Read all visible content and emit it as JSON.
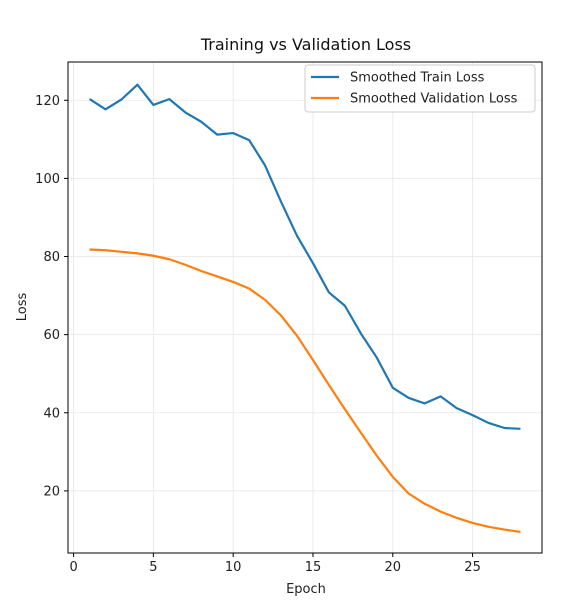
{
  "chart_data": {
    "type": "line",
    "title": "Training vs Validation Loss",
    "xlabel": "Epoch",
    "ylabel": "Loss",
    "xlim": [
      -0.35,
      29.35
    ],
    "ylim": [
      4.1,
      129.8
    ],
    "xticks": [
      0,
      5,
      10,
      15,
      20,
      25
    ],
    "yticks": [
      20,
      40,
      60,
      80,
      100,
      120
    ],
    "grid": true,
    "legend_position": "top-right",
    "x": [
      1,
      2,
      3,
      4,
      5,
      6,
      7,
      8,
      9,
      10,
      11,
      12,
      13,
      14,
      15,
      16,
      17,
      18,
      19,
      20,
      21,
      22,
      23,
      24,
      25,
      26,
      27,
      28
    ],
    "series": [
      {
        "name": "Smoothed Train Loss",
        "color": "#1f77b4",
        "values": [
          120.3,
          117.7,
          120.2,
          124.0,
          118.8,
          120.3,
          116.9,
          114.5,
          111.2,
          111.6,
          109.8,
          103.3,
          94.0,
          85.3,
          78.3,
          70.8,
          67.4,
          60.3,
          54.1,
          46.4,
          43.8,
          42.4,
          44.2,
          41.2,
          39.4,
          37.4,
          36.1,
          35.9
        ]
      },
      {
        "name": "Smoothed Validation Loss",
        "color": "#ff7f0e",
        "values": [
          81.8,
          81.6,
          81.2,
          80.8,
          80.2,
          79.3,
          77.9,
          76.3,
          74.9,
          73.5,
          71.8,
          68.9,
          64.9,
          59.7,
          53.5,
          47.1,
          40.9,
          34.9,
          29.0,
          23.6,
          19.3,
          16.7,
          14.7,
          13.1,
          11.8,
          10.8,
          10.1,
          9.5
        ]
      }
    ]
  }
}
